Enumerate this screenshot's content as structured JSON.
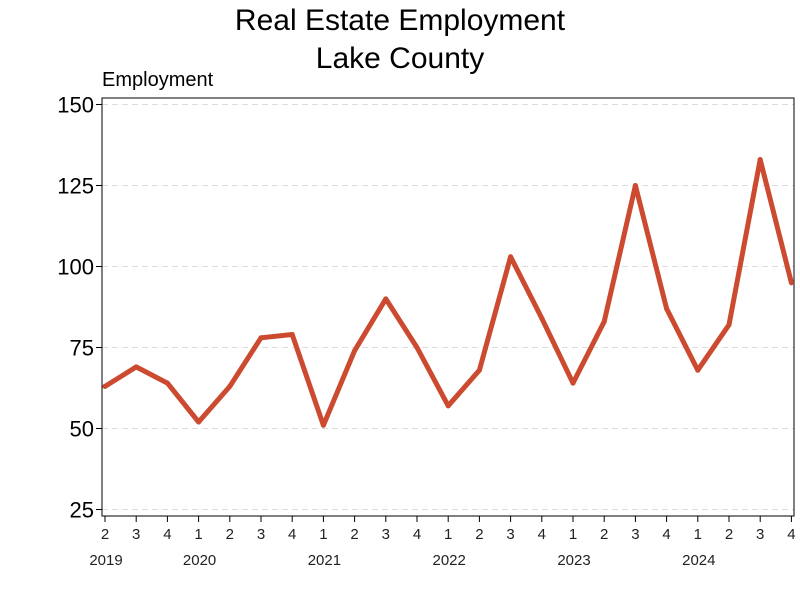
{
  "chart_data": {
    "type": "line",
    "title": "Real Estate Employment",
    "subtitle": "Lake County",
    "ylabel": "Employment",
    "xlabel": "",
    "ylim": [
      23,
      152
    ],
    "yticks": [
      25,
      50,
      75,
      100,
      125,
      150
    ],
    "grid": "horizontal dashed",
    "legend": "none",
    "line_color": "#cc4a2f",
    "x": [
      "2019 Q2",
      "2019 Q3",
      "2019 Q4",
      "2020 Q1",
      "2020 Q2",
      "2020 Q3",
      "2020 Q4",
      "2021 Q1",
      "2021 Q2",
      "2021 Q3",
      "2021 Q4",
      "2022 Q1",
      "2022 Q2",
      "2022 Q3",
      "2022 Q4",
      "2023 Q1",
      "2023 Q2",
      "2023 Q3",
      "2023 Q4",
      "2024 Q1",
      "2024 Q2",
      "2024 Q3",
      "2024 Q4"
    ],
    "quarter_labels": [
      "2",
      "3",
      "4",
      "1",
      "2",
      "3",
      "4",
      "1",
      "2",
      "3",
      "4",
      "1",
      "2",
      "3",
      "4",
      "1",
      "2",
      "3",
      "4",
      "1",
      "2",
      "3",
      "4"
    ],
    "year_labels": [
      {
        "label": "2019",
        "quarter_index": 0
      },
      {
        "label": "2020",
        "quarter_index": 3
      },
      {
        "label": "2021",
        "quarter_index": 7
      },
      {
        "label": "2022",
        "quarter_index": 11
      },
      {
        "label": "2023",
        "quarter_index": 15
      },
      {
        "label": "2024",
        "quarter_index": 19
      }
    ],
    "series": [
      {
        "values": [
          63,
          69,
          64,
          52,
          63,
          78,
          79,
          51,
          74,
          90,
          75,
          57,
          68,
          103,
          84,
          64,
          83,
          125,
          87,
          68,
          82,
          133,
          95
        ]
      }
    ]
  }
}
